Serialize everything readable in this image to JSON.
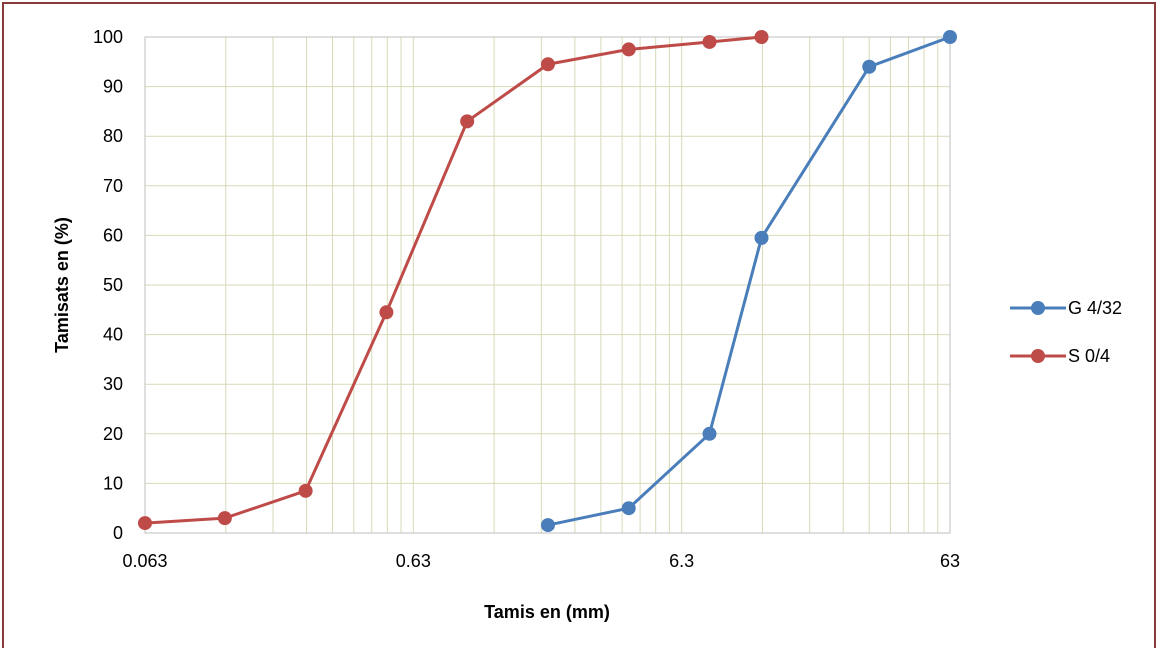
{
  "chart_data": {
    "type": "line",
    "xscale": "log",
    "xlabel": "Tamis en (mm)",
    "ylabel": "Tamisats en (%)",
    "xlim": [
      0.063,
      63
    ],
    "ylim": [
      0,
      100
    ],
    "xticks": [
      "0.063",
      "0.63",
      "6.3",
      "63"
    ],
    "yticks": [
      "0",
      "10",
      "20",
      "30",
      "40",
      "50",
      "60",
      "70",
      "80",
      "90",
      "100"
    ],
    "grid": true,
    "legend_position": "right",
    "series": [
      {
        "name": "G 4/32",
        "color": "#4a7ebb",
        "x": [
          2,
          4,
          8,
          12.5,
          31.5,
          63
        ],
        "y": [
          1.6,
          5.0,
          20.0,
          59.5,
          94.0,
          100.0
        ]
      },
      {
        "name": "S 0/4",
        "color": "#be4b48",
        "x": [
          0.063,
          0.125,
          0.25,
          0.5,
          1,
          2,
          4,
          8,
          12.5
        ],
        "y": [
          2.0,
          3.0,
          8.5,
          44.5,
          83.0,
          94.5,
          97.5,
          99.0,
          100.0
        ]
      }
    ]
  }
}
